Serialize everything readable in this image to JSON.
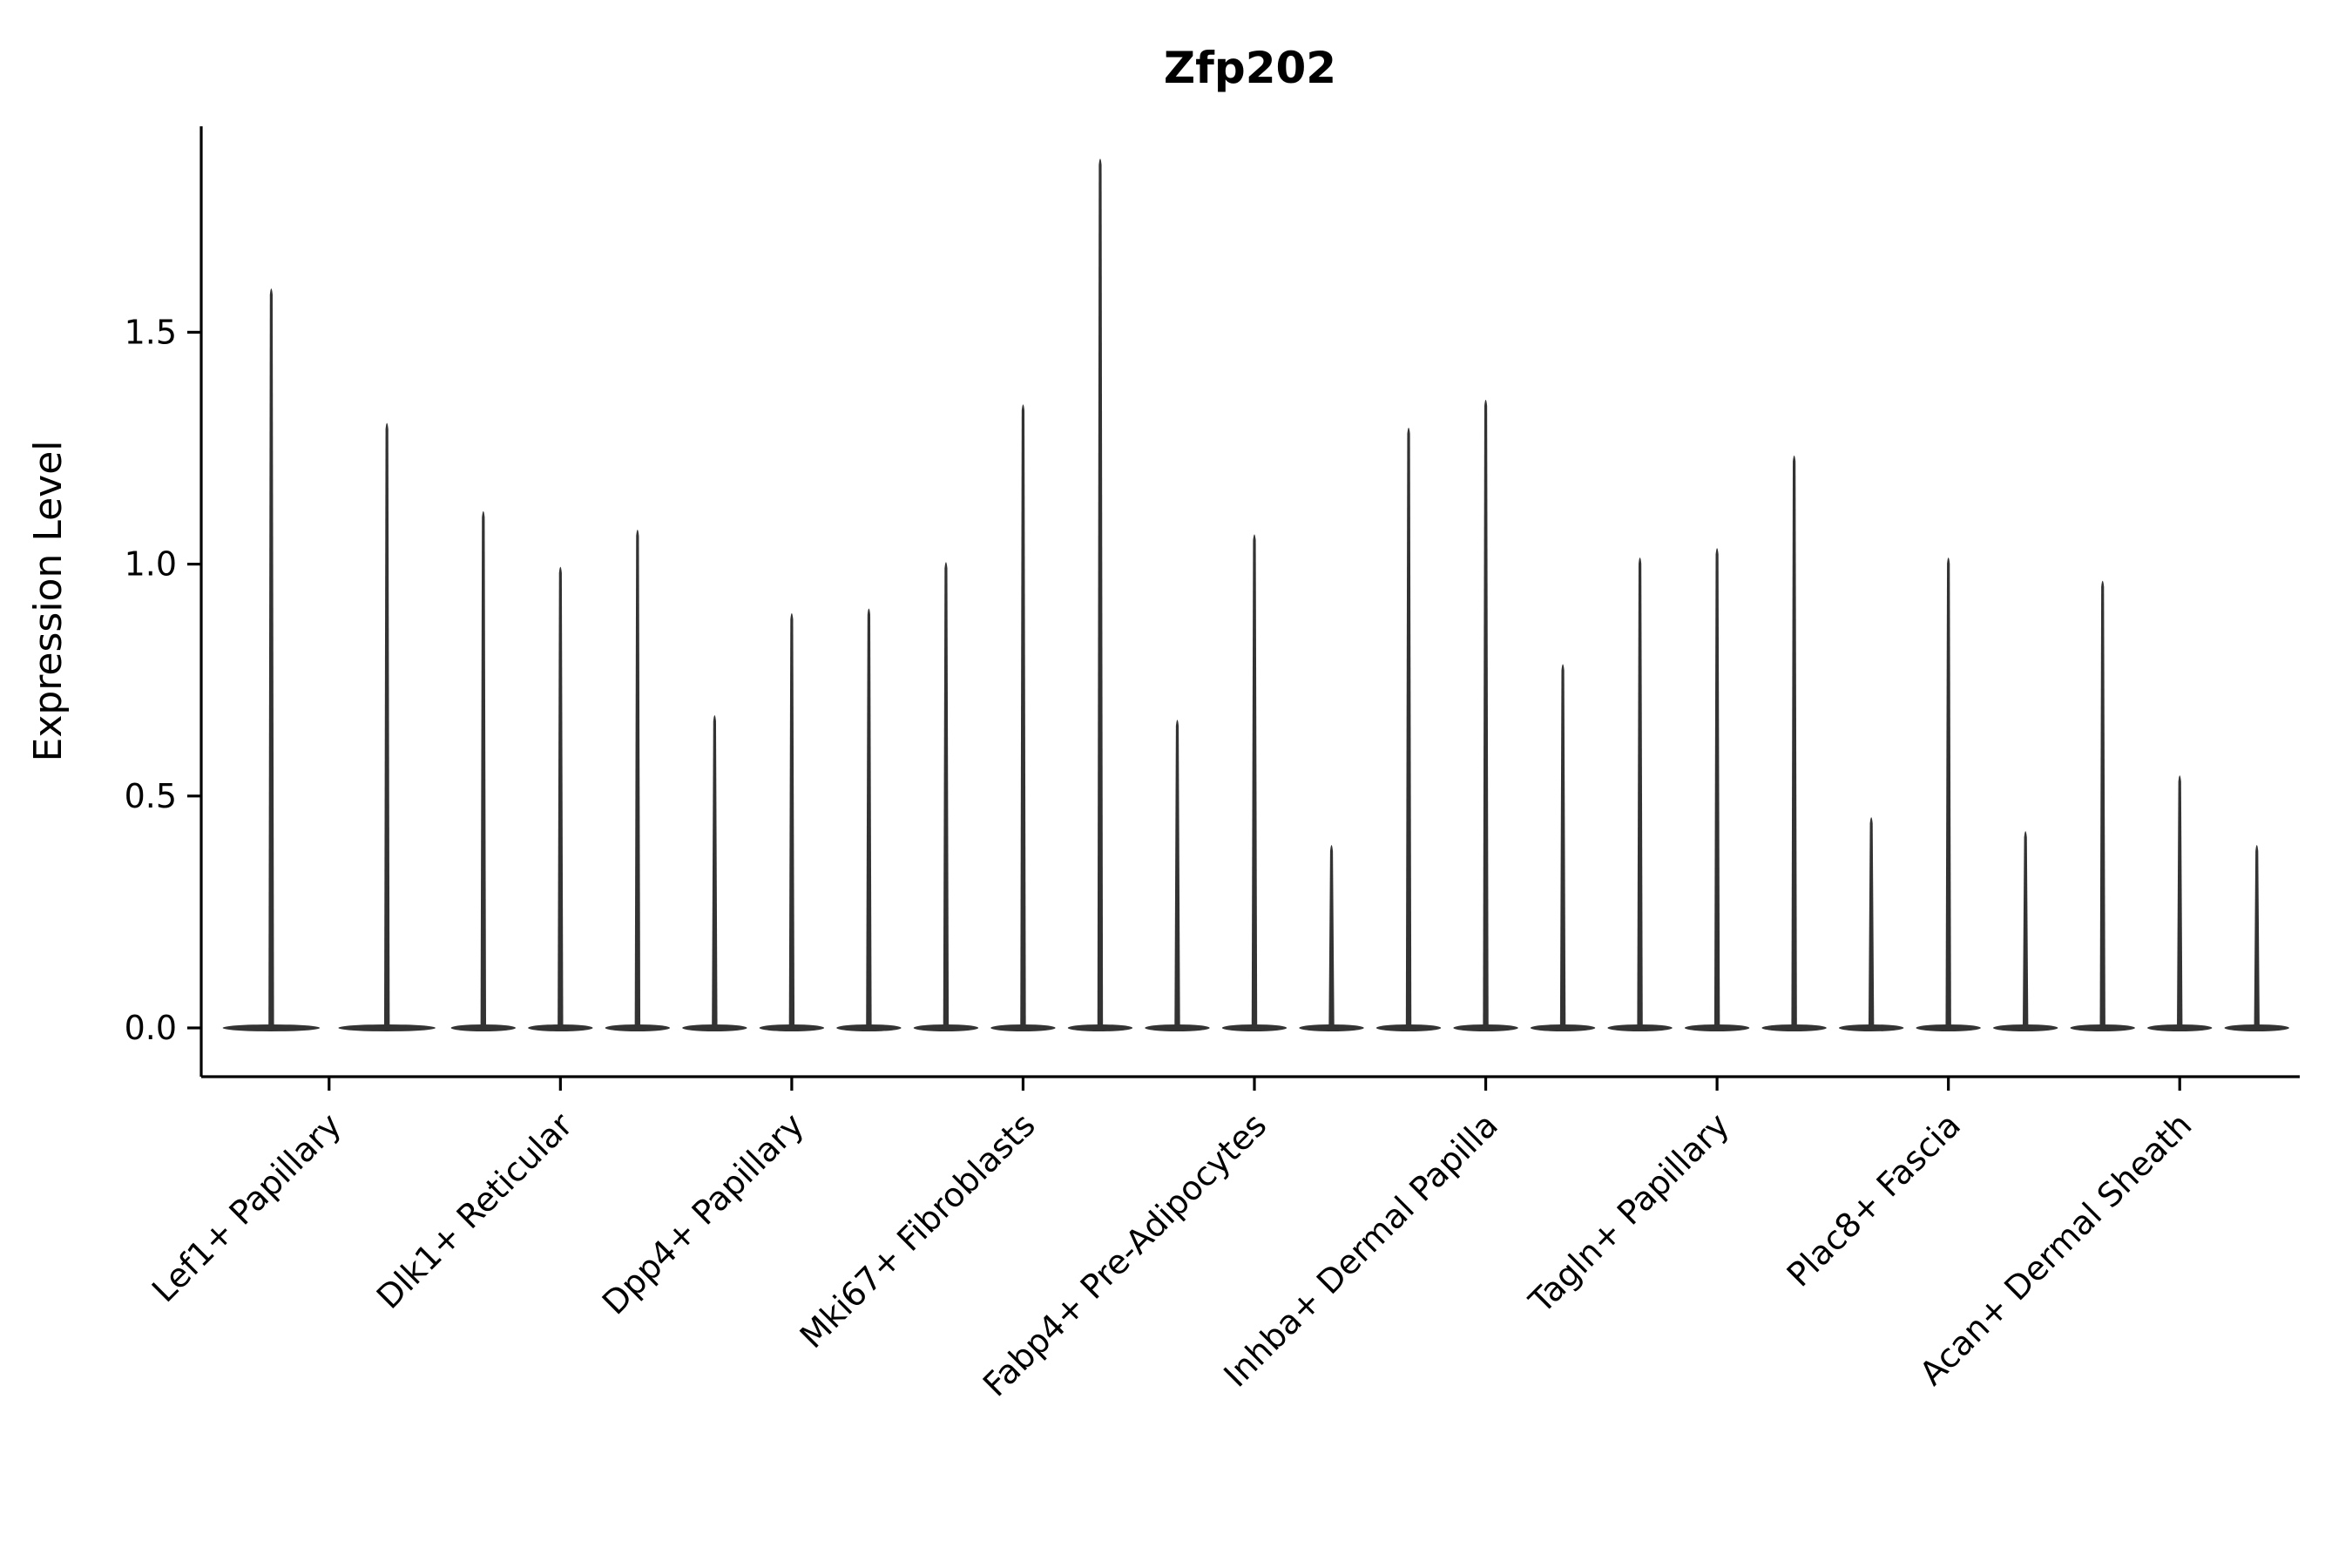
{
  "chart_data": {
    "type": "violin",
    "title": "Zfp202",
    "ylabel": "Expression Level",
    "xlabel": "",
    "ylim": [
      -0.105,
      1.945
    ],
    "yticks": [
      0.0,
      0.5,
      1.0,
      1.5
    ],
    "grid": false,
    "legend": "none",
    "description": "Stacked thin violin spikes; expression mass concentrated at 0 with narrow spikes reaching each violin's max expression value.",
    "categories": [
      "Lef1+ Papillary",
      "Dlk1+ Reticular",
      "Dpp4+ Papillary",
      "Mki67+ Fibroblasts",
      "Fabp4+ Pre-Adipocytes",
      "Inhba+ Dermal Papilla",
      "Tagln+ Papillary",
      "Plac8+ Fascia",
      "Acan+ Dermal Sheath"
    ],
    "groups": [
      {
        "label": "Lef1+ Papillary",
        "violin_maxes": [
          1.6,
          1.31
        ]
      },
      {
        "label": "Dlk1+ Reticular",
        "violin_maxes": [
          1.12,
          1.0,
          1.08
        ]
      },
      {
        "label": "Dpp4+ Papillary",
        "violin_maxes": [
          0.68,
          0.9,
          0.91
        ]
      },
      {
        "label": "Mki67+ Fibroblasts",
        "violin_maxes": [
          1.01,
          1.35,
          1.88
        ]
      },
      {
        "label": "Fabp4+ Pre-Adipocytes",
        "violin_maxes": [
          0.67,
          1.07,
          0.4
        ]
      },
      {
        "label": "Inhba+ Dermal Papilla",
        "violin_maxes": [
          1.3,
          1.36,
          0.79
        ]
      },
      {
        "label": "Tagln+ Papillary",
        "violin_maxes": [
          1.02,
          1.04,
          1.24
        ]
      },
      {
        "label": "Plac8+ Fascia",
        "violin_maxes": [
          0.46,
          1.02,
          0.43
        ]
      },
      {
        "label": "Acan+ Dermal Sheath",
        "violin_maxes": [
          0.97,
          0.55,
          0.4
        ]
      }
    ],
    "colors": {
      "violin": "#333333",
      "axis": "#000000",
      "text": "#000000",
      "background": "#ffffff"
    }
  }
}
